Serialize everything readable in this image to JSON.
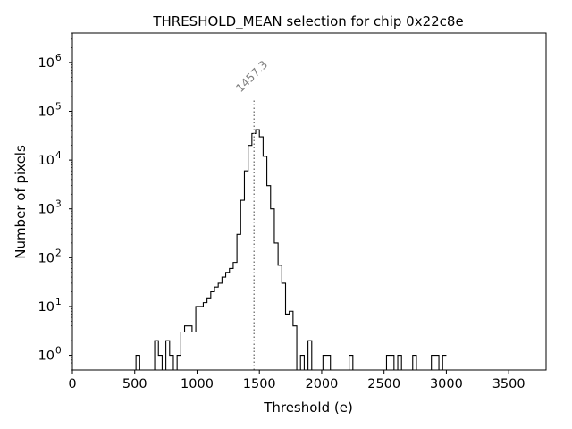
{
  "chart_data": {
    "type": "step-histogram",
    "title": "THRESHOLD_MEAN selection for chip 0x22c8e",
    "xlabel": "Threshold (e)",
    "ylabel": "Number of pixels",
    "xlim": [
      0,
      3800
    ],
    "ylim": [
      0.5,
      4000000
    ],
    "yscale": "log",
    "x_ticks": [
      0,
      500,
      1000,
      1500,
      2000,
      2500,
      3000,
      3500
    ],
    "x_tick_labels": [
      "0",
      "500",
      "1000",
      "1500",
      "2000",
      "2500",
      "3000",
      "3500"
    ],
    "y_ticks": [
      1,
      10,
      100,
      1000,
      10000,
      100000,
      1000000
    ],
    "y_tick_labels": [
      {
        "base": "10",
        "exp": "0"
      },
      {
        "base": "10",
        "exp": "1"
      },
      {
        "base": "10",
        "exp": "2"
      },
      {
        "base": "10",
        "exp": "3"
      },
      {
        "base": "10",
        "exp": "4"
      },
      {
        "base": "10",
        "exp": "5"
      },
      {
        "base": "10",
        "exp": "6"
      }
    ],
    "bins": {
      "start": 0,
      "width": 30
    },
    "counts": [
      0,
      0,
      0,
      0,
      0,
      0,
      0,
      0,
      0,
      0,
      0,
      0,
      0,
      0,
      0,
      0,
      0,
      1,
      0,
      0,
      0,
      0,
      2,
      1,
      0,
      2,
      1,
      0,
      1,
      3,
      4,
      4,
      3,
      10,
      10,
      12,
      15,
      20,
      25,
      30,
      40,
      50,
      60,
      80,
      300,
      1500,
      6000,
      20000,
      35000,
      42000,
      30000,
      12000,
      3000,
      1000,
      200,
      70,
      30,
      7,
      8,
      4,
      0,
      1,
      0,
      2,
      0,
      0,
      0,
      1,
      1,
      0,
      0,
      0,
      0,
      0,
      1,
      0,
      0,
      0,
      0,
      0,
      0,
      0,
      0,
      0,
      1,
      1,
      0,
      1,
      0,
      0,
      0,
      1,
      0,
      0,
      0,
      0,
      1,
      1,
      0,
      1
    ],
    "marker": {
      "x": 1457.3,
      "label": "1457.3",
      "ytop": 170000
    }
  },
  "colors": {
    "line": "#000000",
    "marker": "#808080"
  }
}
